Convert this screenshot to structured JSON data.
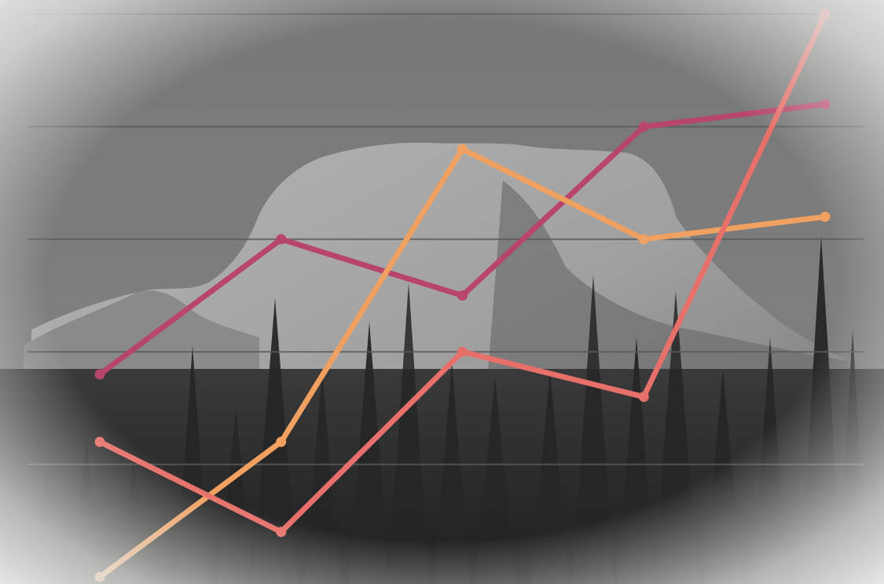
{
  "chart_data": {
    "type": "line",
    "title": "",
    "xlabel": "",
    "ylabel": "",
    "x": [
      1,
      2,
      3,
      4,
      5
    ],
    "xlim": [
      1,
      5
    ],
    "ylim": [
      0,
      5
    ],
    "grid": true,
    "legend": "none",
    "series": [
      {
        "color": "#b8466a",
        "values": [
          1.8,
          3.0,
          2.5,
          4.0,
          4.2
        ]
      },
      {
        "color": "#f0a060",
        "values": [
          0.0,
          1.2,
          3.8,
          3.0,
          3.2
        ]
      },
      {
        "color": "#e8706a",
        "values": [
          1.2,
          0.4,
          2.0,
          1.6,
          5.0
        ]
      }
    ]
  },
  "background": {
    "sky_color": "#7d7d7d",
    "mountain_color": "#a6a6a6",
    "forest_color": "#2a2a2a",
    "vignette_color": "#e6e6e4"
  }
}
